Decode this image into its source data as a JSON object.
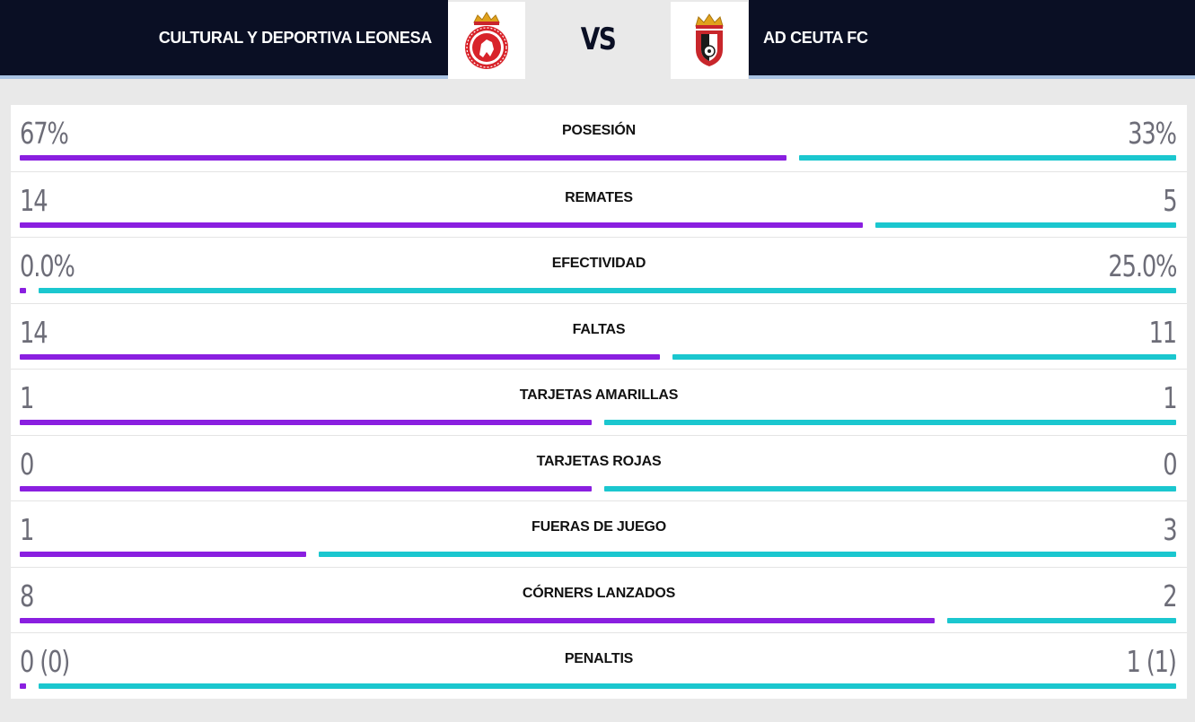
{
  "home_team": {
    "name": "CULTURAL Y DEPORTIVA LEONESA",
    "crest": "cultural-leonesa-crest-icon",
    "color": "#8a1fe0"
  },
  "away_team": {
    "name": "AD CEUTA FC",
    "crest": "ad-ceuta-crest-icon",
    "color": "#1bc7cf"
  },
  "vs_label": "VS",
  "stats": [
    {
      "label": "POSESIÓN",
      "home": "67%",
      "away": "33%",
      "home_share": 0.67
    },
    {
      "label": "REMATES",
      "home": "14",
      "away": "5",
      "home_share": 0.737
    },
    {
      "label": "EFECTIVIDAD",
      "home": "0.0%",
      "away": "25.0%",
      "home_share": 0.0
    },
    {
      "label": "FALTAS",
      "home": "14",
      "away": "11",
      "home_share": 0.56
    },
    {
      "label": "TARJETAS AMARILLAS",
      "home": "1",
      "away": "1",
      "home_share": 0.5
    },
    {
      "label": "TARJETAS ROJAS",
      "home": "0",
      "away": "0",
      "home_share": 0.5
    },
    {
      "label": "FUERAS DE JUEGO",
      "home": "1",
      "away": "3",
      "home_share": 0.25
    },
    {
      "label": "CÓRNERS LANZADOS",
      "home": "8",
      "away": "2",
      "home_share": 0.8
    },
    {
      "label": "PENALTIS",
      "home": "0 (0)",
      "away": "1 (1)",
      "home_share": 0.0
    }
  ]
}
